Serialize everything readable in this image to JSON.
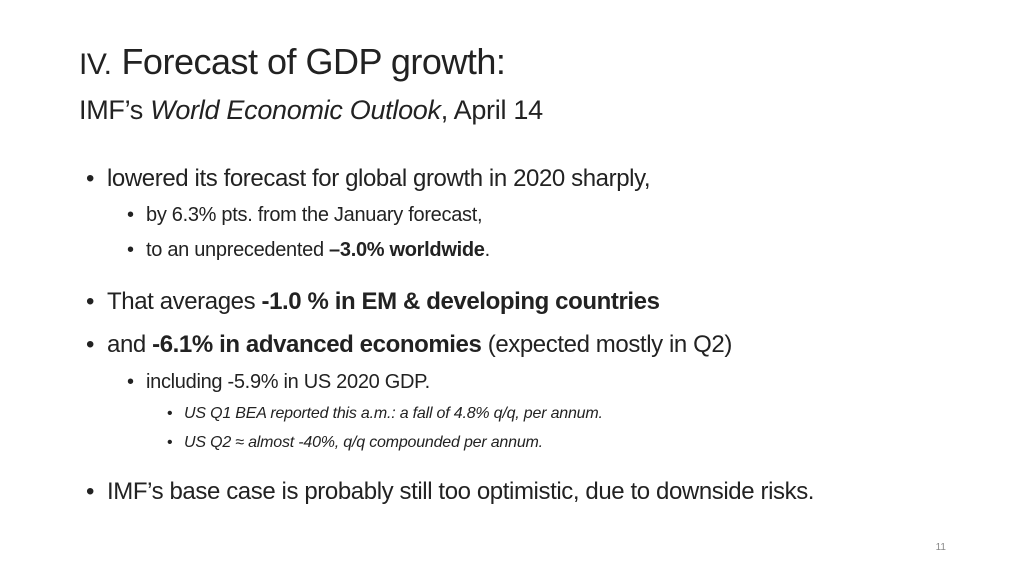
{
  "slide": {
    "title_prefix": "IV.",
    "title_main": "Forecast of GDP growth:",
    "subtitle_a": "IMF’s ",
    "subtitle_b": "World Economic Outlook",
    "subtitle_c": ", April 14",
    "page_number": "11"
  },
  "bullets": {
    "b1": "lowered its forecast for global growth in 2020 sharply,",
    "b1a": "by 6.3% pts. from the January forecast,",
    "b1b_a": "to an unprecedented ",
    "b1b_b": "–3.0% worldwide",
    "b1b_c": ".",
    "b2_a": "That averages ",
    "b2_b": "-1.0 % in EM & developing countries",
    "b3_a": "and ",
    "b3_b": "-6.1% in advanced economies",
    "b3_c": " (expected mostly in Q2)",
    "b3a": "including -5.9% in US 2020 GDP.",
    "b3a1": "US Q1 BEA reported this a.m.: a fall of 4.8% q/q, per annum.",
    "b3a2": "US Q2  ≈ almost -40%, q/q compounded per annum.",
    "b4": "IMF’s base case is probably still too optimistic, due to downside risks."
  },
  "bullet_glyph": "•"
}
